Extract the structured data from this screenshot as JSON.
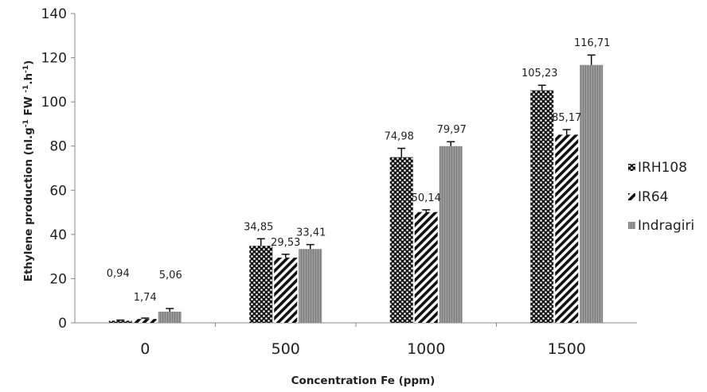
{
  "chart_data": {
    "type": "bar",
    "title": "",
    "xlabel": "Concentration Fe (ppm)",
    "ylabel_parts": [
      "Ethylene production (nl.g",
      "-1",
      " FW ",
      "-1",
      ".h",
      "-1",
      ")"
    ],
    "categories": [
      "0",
      "500",
      "1000",
      "1500"
    ],
    "series": [
      {
        "name": "IRH108",
        "values": [
          0.94,
          34.85,
          74.98,
          105.23
        ],
        "labels": [
          "0,94",
          "34,85",
          "74,98",
          "105,23"
        ],
        "errors": [
          0.3,
          3.2,
          4.0,
          2.3
        ],
        "pattern": "dots"
      },
      {
        "name": "IR64",
        "values": [
          1.74,
          29.53,
          50.14,
          85.17
        ],
        "labels": [
          "1,74",
          "29,53",
          "50,14",
          "85,17"
        ],
        "errors": [
          0.4,
          1.5,
          1.0,
          2.3
        ],
        "pattern": "stripes"
      },
      {
        "name": "Indragiri",
        "values": [
          5.06,
          33.41,
          79.97,
          116.71
        ],
        "labels": [
          "5,06",
          "33,41",
          "79,97",
          "116,71"
        ],
        "errors": [
          1.4,
          2.0,
          2.0,
          4.5
        ],
        "pattern": "vlines"
      }
    ],
    "ylim": [
      0,
      140
    ],
    "yticks": [
      0,
      20,
      40,
      60,
      80,
      100,
      120,
      140
    ],
    "grid": false,
    "error_bars": true,
    "legend_position": "right",
    "colors": {
      "irh108": "#111111",
      "ir64": "#111111",
      "indragiri": "#8c8c8c"
    }
  }
}
